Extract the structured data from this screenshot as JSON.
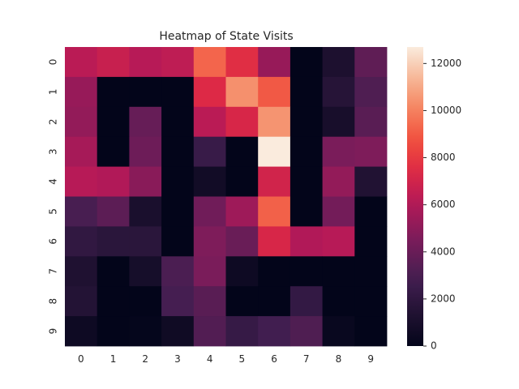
{
  "chart_data": {
    "type": "heatmap",
    "title": "Heatmap of State Visits",
    "xlabel": "",
    "ylabel": "",
    "x_categories": [
      "0",
      "1",
      "2",
      "3",
      "4",
      "5",
      "6",
      "7",
      "8",
      "9"
    ],
    "y_categories": [
      "0",
      "1",
      "2",
      "3",
      "4",
      "5",
      "6",
      "7",
      "8",
      "9"
    ],
    "values": [
      [
        6300,
        6700,
        6200,
        6400,
        9300,
        7600,
        5300,
        0,
        1200,
        3700
      ],
      [
        5300,
        0,
        0,
        0,
        7400,
        10400,
        9000,
        0,
        1600,
        3200
      ],
      [
        5200,
        0,
        3900,
        0,
        6300,
        7200,
        10500,
        0,
        1000,
        3500
      ],
      [
        5700,
        0,
        4100,
        0,
        2400,
        0,
        12700,
        0,
        4500,
        4600
      ],
      [
        6200,
        6000,
        4900,
        0,
        700,
        0,
        7000,
        0,
        5200,
        1400
      ],
      [
        3000,
        3600,
        1100,
        0,
        4200,
        5500,
        9200,
        0,
        4300,
        0
      ],
      [
        2100,
        1800,
        1800,
        0,
        4600,
        4000,
        7200,
        6000,
        6200,
        0
      ],
      [
        1300,
        0,
        900,
        3100,
        4500,
        500,
        0,
        0,
        0,
        0
      ],
      [
        1500,
        0,
        0,
        2900,
        3500,
        0,
        0,
        2200,
        0,
        0
      ],
      [
        500,
        0,
        100,
        600,
        3300,
        2300,
        2800,
        3200,
        300,
        0
      ]
    ],
    "vmin": 0,
    "vmax": 12700,
    "colormap": "rocket",
    "colorbar_ticks": [
      "0",
      "2000",
      "4000",
      "6000",
      "8000",
      "10000",
      "12000"
    ],
    "colorbar_tick_values": [
      0,
      2000,
      4000,
      6000,
      8000,
      10000,
      12000
    ],
    "grid": false
  }
}
